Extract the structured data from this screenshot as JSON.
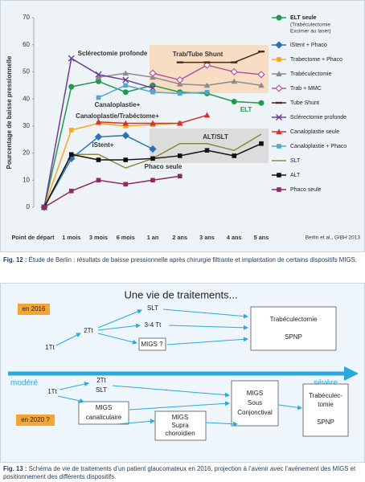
{
  "chart_data": {
    "type": "line",
    "y_label": "Pourcentage de baisse pressionnelle",
    "source": "Berlin et al., GIBH 2013",
    "categories": [
      "Point de départ",
      "1 mois",
      "3 mois",
      "6 mois",
      "1 an",
      "2 ans",
      "3 ans",
      "4 ans",
      "5 ans"
    ],
    "ylim": [
      0,
      70
    ],
    "yticks": [
      0,
      10,
      20,
      30,
      40,
      50,
      60,
      70
    ],
    "grid": false,
    "series": [
      {
        "name": "ELT seule",
        "note": [
          "(Trabéculectomie",
          "Excimer au laser)"
        ],
        "color": "#1f9a4b",
        "marker": "circle",
        "values": [
          0,
          44.5,
          46.5,
          42.5,
          45,
          42.5,
          42,
          39,
          38.5
        ]
      },
      {
        "name": "iStent + Phaco",
        "color": "#2a72b8",
        "marker": "diamond",
        "values": [
          0,
          18,
          26,
          26.5,
          21.5,
          null,
          null,
          null,
          null
        ]
      },
      {
        "name": "Trabectome + Phaco",
        "color": "#f5a623",
        "marker": "square",
        "values": [
          0,
          28.5,
          31,
          30,
          30.5,
          31,
          null,
          null,
          null
        ]
      },
      {
        "name": "Trabéculectomie",
        "color": "#8c8c8c",
        "marker": "triangle",
        "values": [
          null,
          null,
          48,
          49.5,
          48,
          45.5,
          45,
          46.5,
          45
        ]
      },
      {
        "name": "Trab + MMC",
        "color": "#b0589c",
        "marker": "diamond-open",
        "values": [
          null,
          null,
          null,
          null,
          49.5,
          47,
          52.5,
          50,
          49
        ]
      },
      {
        "name": "Tube Shunt",
        "color": "#4a2a1a",
        "marker": "dash",
        "values": [
          null,
          null,
          null,
          null,
          null,
          53.5,
          53.5,
          53.5,
          57.5
        ]
      },
      {
        "name": "Sclérectomie profonde",
        "color": "#6a3d9a",
        "marker": "x",
        "values": [
          0,
          55,
          49,
          47,
          44,
          null,
          null,
          null,
          null
        ]
      },
      {
        "name": "Canaloplastie seule",
        "color": "#d7302c",
        "marker": "triangle",
        "values": [
          null,
          null,
          31.5,
          31,
          31,
          31,
          34,
          null,
          null
        ]
      },
      {
        "name": "Canaloplastie + Phaco",
        "color": "#4fa9c8",
        "marker": "square",
        "values": [
          null,
          null,
          40.5,
          45,
          42.5,
          42,
          42.5,
          null,
          null
        ]
      },
      {
        "name": "SLT",
        "color": "#8a8a3a",
        "marker": "none",
        "values": [
          0,
          19.5,
          19.5,
          14.5,
          18,
          23.5,
          23.5,
          21,
          27
        ]
      },
      {
        "name": "ALT",
        "color": "#111111",
        "marker": "square",
        "values": [
          0,
          19.5,
          17.5,
          17.5,
          18,
          19,
          21,
          19,
          23.5
        ]
      },
      {
        "name": "Phaco seule",
        "color": "#8e2a5e",
        "marker": "square",
        "values": [
          0,
          6,
          10,
          8.5,
          10,
          11.5,
          null,
          null,
          null
        ]
      }
    ],
    "annotations": [
      {
        "text": "Sclérectomie profonde",
        "color": "#333333"
      },
      {
        "text": "Trab/Tube Shunt",
        "color": "#333333"
      },
      {
        "text": "ELT",
        "color": "#1f9a4b"
      },
      {
        "text": "Canaloplastie+",
        "color": "#333333"
      },
      {
        "text": "Canaloplastie/Trabéctome+",
        "color": "#333333"
      },
      {
        "text": "iStent+",
        "color": "#333333"
      },
      {
        "text": "ALT/SLT",
        "color": "#333333"
      },
      {
        "text": "Phaco seule",
        "color": "#333333"
      }
    ]
  },
  "captions": [
    {
      "label": "Fig. 12 :",
      "text": "Étude de Berlin : résultats de baisse pressionnelle après chirurgie filtrante et implantation de certains dispositifs MIGS."
    },
    {
      "label": "Fig. 13 :",
      "text": "Schéma de vie de traitements d’un patient glaucomateux en 2016, projection à l’avenir avec l’avènement des MIGS et positionnement des différents dispositifs."
    }
  ],
  "diagram": {
    "title": "Une vie de traitements...",
    "scale": {
      "start": "modéré",
      "end": "sévère"
    },
    "now": {
      "label": "en 2016",
      "nodes": [
        [
          "1Tt"
        ],
        [
          "2Tt"
        ],
        [
          "SLT"
        ],
        [
          "3-4 Tt"
        ],
        [
          "MIGS ?"
        ],
        [
          "Trabéculectomie",
          "SPNP"
        ]
      ]
    },
    "future": {
      "label": "en 2020 ?",
      "nodes": [
        [
          "1Tt"
        ],
        [
          "2Tt",
          "SLT"
        ],
        [
          "MIGS",
          "canaliculaire"
        ],
        [
          "MIGS",
          "Supra",
          "choroïdien"
        ],
        [
          "MIGS",
          "Sous",
          "Conjonctival"
        ],
        [
          "Trabéculec-",
          "tomie",
          "SPNP"
        ]
      ]
    }
  }
}
